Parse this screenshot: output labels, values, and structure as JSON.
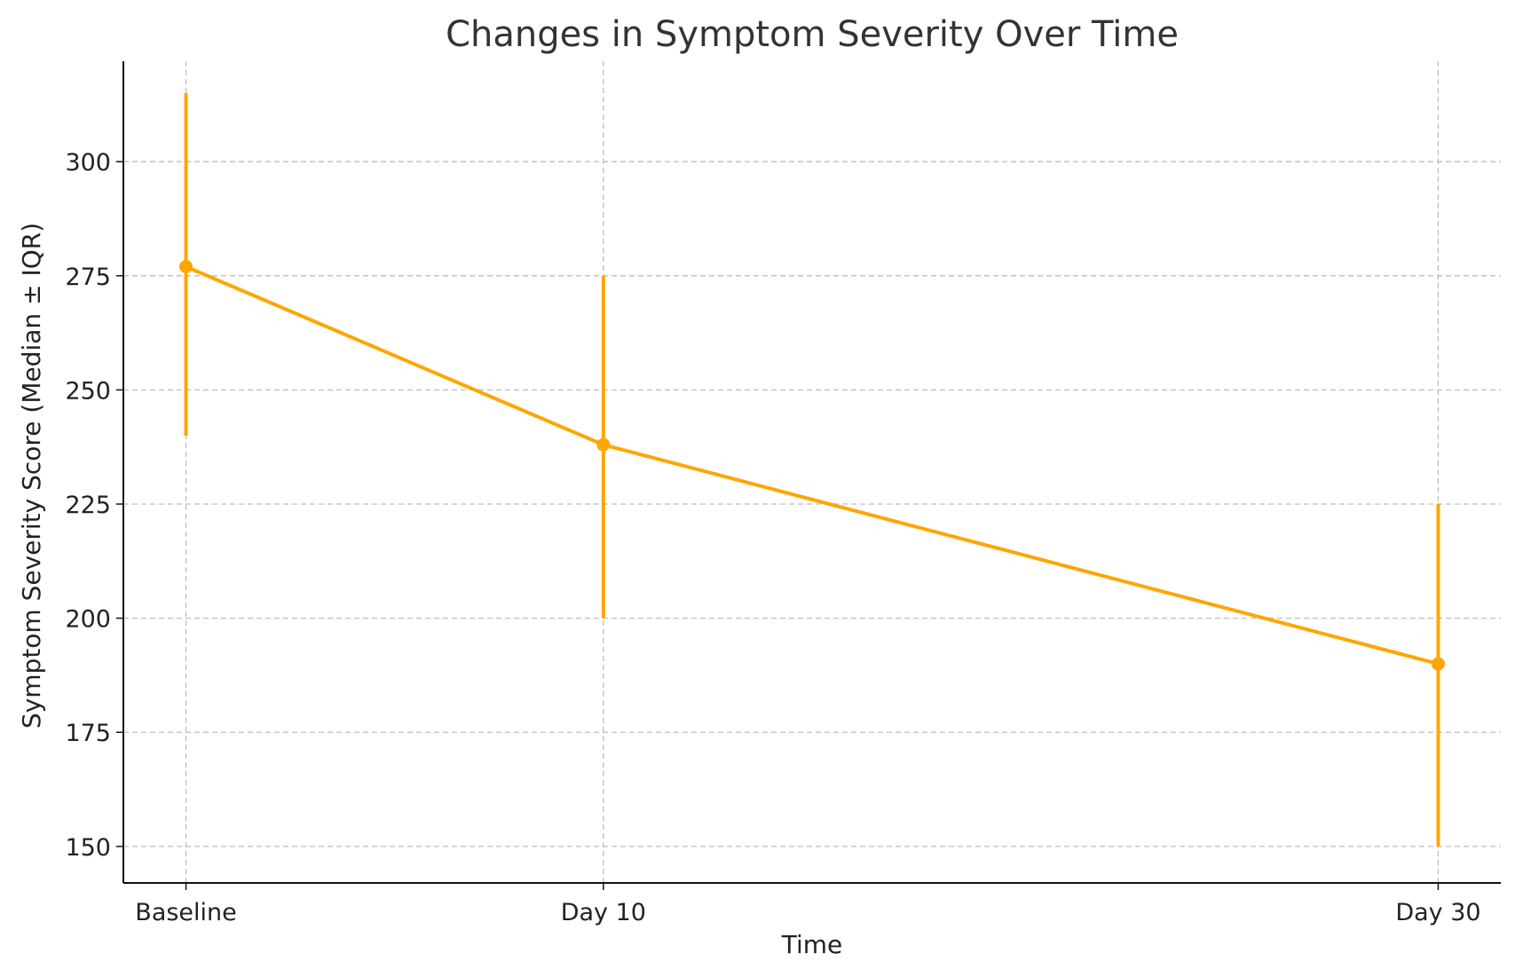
{
  "chart_data": {
    "type": "line",
    "title": "Changes in Symptom Severity Over Time",
    "xlabel": "Time",
    "ylabel": "Symptom Severity Score (Median ± IQR)",
    "categories": [
      "Baseline",
      "Day 10",
      "Day 30"
    ],
    "x": [
      0,
      10,
      30
    ],
    "series": [
      {
        "name": "",
        "values": [
          277,
          238,
          190
        ],
        "error_low": [
          240,
          200,
          150
        ],
        "error_high": [
          315,
          275,
          225
        ],
        "color": "#FFA500"
      }
    ],
    "yticks": [
      150,
      175,
      200,
      225,
      250,
      275,
      300
    ],
    "ylim": [
      142,
      322
    ],
    "xlim": [
      -1.5,
      31.5
    ],
    "grid": true,
    "legend": "none"
  }
}
